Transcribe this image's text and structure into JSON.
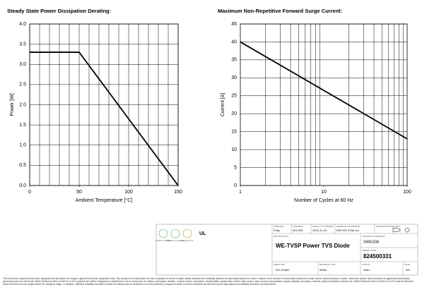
{
  "chart_data": [
    {
      "type": "line",
      "title": "Steady State Power Dissipation Derating:",
      "x_label": "Ambient Temperature [°C]",
      "y_label": "Power [W]",
      "x": [
        0,
        50,
        150
      ],
      "values": [
        3.3,
        3.3,
        0
      ],
      "color": "#000000",
      "xlim": [
        0,
        150
      ],
      "xticks": [
        0,
        50,
        100,
        150
      ],
      "xgrid": [
        0,
        10,
        20,
        30,
        40,
        50,
        60,
        70,
        80,
        90,
        100,
        110,
        120,
        130,
        140,
        150
      ],
      "ylim": [
        0,
        4
      ],
      "yticks": [
        {
          "value": 0,
          "label": "0.0"
        },
        {
          "value": 0.5,
          "label": "0.5"
        },
        {
          "value": 1,
          "label": "1.0"
        },
        {
          "value": 1.5,
          "label": "1.5"
        },
        {
          "value": 2,
          "label": "2.0"
        },
        {
          "value": 2.5,
          "label": "2.5"
        },
        {
          "value": 3,
          "label": "3.0"
        },
        {
          "value": 3.5,
          "label": "3.5"
        },
        {
          "value": 4,
          "label": "4.0"
        }
      ],
      "grid": true,
      "log_x": false
    },
    {
      "type": "line",
      "title": "Maximum Non-Repetitive Forward Surge Current:",
      "x_label": "Number of Cycles at 60 Hz",
      "y_label": "Current [A]",
      "x": [
        1,
        100
      ],
      "values": [
        40,
        13
      ],
      "color": "#000000",
      "xlim": [
        1,
        100
      ],
      "xticks": [
        1,
        10,
        100
      ],
      "ylim": [
        0,
        45
      ],
      "yticks": [
        0,
        5,
        10,
        15,
        20,
        25,
        30,
        35,
        40,
        45
      ],
      "grid": true,
      "log_x": true
    }
  ],
  "title_block": {
    "icons": [
      "RoHS compliant",
      "REACh compliant",
      "Halogen free",
      "UL"
    ],
    "created_label": "CREATED",
    "created": "Polly",
    "checked_label": "CHECKED",
    "checked": "001.003",
    "date_label": "DATE (YYYY-MM-DD)",
    "date": "2022-11-24",
    "tolerance_label": "GENERAL TOLERANCE",
    "tolerance": "DIN ISO 2768-1m",
    "projection_label": "PROJECTION METHOD",
    "description_label": "DESCRIPTION",
    "description": "WE-TVSP Power TVS Diode",
    "type_label": "TECHNICAL REMARKS",
    "type": "SMAJ33A",
    "order_label": "ORDER CODE",
    "order": "824500331",
    "size_label": "SIZE/TYPE",
    "size": "DO-214AC",
    "unit_label": "BUSINESS UNIT",
    "unit": "eiSos",
    "status_label": "STATUS",
    "status": "Valid",
    "page_label": "PAGE",
    "page": "3/9"
  },
  "disclaimer": "This electronic component has been designed and developed for usage in general electronic equipment only. This product is not authorized for use in equipment where a higher safety standard and reliability standard is especially required or where a failure of the product is reasonably expected to cause severe personal injury or death, unless the parties have executed an agreement specifically governing such use. Moreover Würth Elektronik eiSos GmbH & Co KG products are neither designed nor intended for use in areas such as military, aerospace, aviation, nuclear control, submarine, transportation (automotive control, train control, ship control), transportation signal, disaster prevention, medical, public information network etc. Würth Elektronik eiSos GmbH & Co KG must be informed about the intent of such usage before the design-in stage. In addition, sufficient reliability evaluation checks for safety must be performed on every electronic component which is used in electrical circuits that require high safety and reliability functions or performance."
}
